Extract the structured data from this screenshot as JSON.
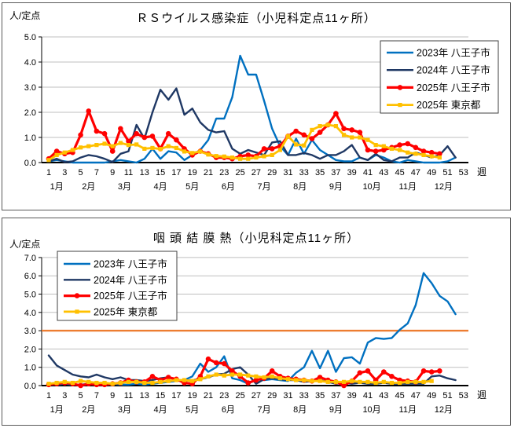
{
  "colors": {
    "background": "#FFFFFF",
    "panel_border": "#595959",
    "gridline": "#BFBFBF",
    "axis": "#000000",
    "blue_2023": "#0070C0",
    "navy_2024": "#1F3864",
    "red_2025_hachioji": "#FF0000",
    "yellow_2025_tokyo": "#FFC000",
    "alert_line_orange": "#ED7D31"
  },
  "chart_data": [
    {
      "type": "line",
      "title": "ＲＳウイルス感染症（小児科定点11ヶ所）",
      "y_axis_label": "人/定点",
      "x_axis_unit": "週",
      "ylim": [
        0,
        5
      ],
      "y_ticks": [
        "0.0",
        "1.0",
        "2.0",
        "3.0",
        "4.0",
        "5.0"
      ],
      "grid": true,
      "legend_position": "top-right",
      "week_ticks": [
        1,
        3,
        5,
        7,
        9,
        11,
        13,
        15,
        17,
        19,
        21,
        23,
        25,
        27,
        29,
        31,
        33,
        35,
        37,
        39,
        41,
        43,
        45,
        47,
        49,
        51,
        53
      ],
      "month_labels": [
        {
          "label": "1月",
          "week": 2
        },
        {
          "label": "2月",
          "week": 6
        },
        {
          "label": "3月",
          "week": 10.5
        },
        {
          "label": "4月",
          "week": 15
        },
        {
          "label": "5月",
          "week": 19
        },
        {
          "label": "6月",
          "week": 23.5
        },
        {
          "label": "7月",
          "week": 28
        },
        {
          "label": "8月",
          "week": 32.5
        },
        {
          "label": "9月",
          "week": 37
        },
        {
          "label": "10月",
          "week": 41.5
        },
        {
          "label": "11月",
          "week": 46
        },
        {
          "label": "12月",
          "week": 50.5
        }
      ],
      "series": [
        {
          "id": "2023-hachioji",
          "name": "2023年  八王子市",
          "color": "#0070C0",
          "marker": "none",
          "width": 2.4,
          "values": [
            0.05,
            0.1,
            0.05,
            0,
            0,
            0,
            0,
            0,
            0.05,
            0.1,
            0.05,
            0,
            0.15,
            0.55,
            0.15,
            0.45,
            0.4,
            0.1,
            0.3,
            0.5,
            0.9,
            1.75,
            1.75,
            2.6,
            4.25,
            3.5,
            3.5,
            2.45,
            1.35,
            0.65,
            0.3,
            0.95,
            0.35,
            0.9,
            0.5,
            0.3,
            0.1,
            0.05,
            0.05,
            0.2,
            0.1,
            0.3,
            0.2,
            0.05,
            0,
            0.1,
            0.05,
            0,
            0,
            0,
            0.05,
            0.2
          ]
        },
        {
          "id": "2024-hachioji",
          "name": "2024年  八王子市",
          "color": "#1F3864",
          "marker": "none",
          "width": 2.4,
          "values": [
            0.05,
            0.15,
            0.02,
            0.05,
            0.2,
            0.3,
            0.25,
            0.15,
            0.02,
            0.35,
            0.45,
            1.5,
            0.95,
            2.0,
            2.9,
            2.5,
            2.95,
            1.9,
            2.15,
            1.6,
            1.3,
            1.2,
            1.25,
            0.55,
            0.35,
            0.5,
            0.4,
            0.3,
            0.8,
            0.85,
            0.3,
            0.3,
            0.38,
            0.3,
            0.15,
            0.3,
            0.3,
            0.45,
            0.7,
            0.2,
            0.1,
            0.35,
            0.1,
            0.05,
            0.2,
            0.2,
            0.4,
            0.3,
            0.2,
            0.3,
            0.65,
            0.2
          ]
        },
        {
          "id": "2025-hachioji",
          "name": "2025年  八王子市",
          "color": "#FF0000",
          "marker": "circle",
          "width": 3.2,
          "values": [
            0.15,
            0.45,
            0.35,
            0.4,
            1.1,
            2.05,
            1.25,
            1.15,
            0.45,
            1.35,
            0.85,
            1.15,
            1.0,
            1.05,
            0.55,
            1.15,
            0.9,
            0.55,
            0.3,
            0.45,
            0.35,
            0.2,
            0.2,
            0.15,
            0.25,
            0.3,
            0.25,
            0.55,
            0.55,
            0.65,
            1.05,
            1.25,
            1.1,
            0.95,
            1.2,
            1.5,
            1.95,
            1.35,
            1.3,
            1.2,
            0.5,
            0.45,
            0.5,
            0.6,
            0.7,
            0.75,
            0.6,
            0.45,
            0.4,
            0.35
          ]
        },
        {
          "id": "2025-tokyo",
          "name": "2025年  東京都",
          "color": "#FFC000",
          "marker": "square",
          "width": 2.8,
          "values": [
            0.1,
            0.3,
            0.4,
            0.5,
            0.6,
            0.65,
            0.7,
            0.75,
            0.65,
            0.78,
            0.7,
            0.72,
            0.55,
            0.58,
            0.54,
            0.65,
            0.58,
            0.44,
            0.38,
            0.44,
            0.32,
            0.26,
            0.24,
            0.2,
            0.15,
            0.15,
            0.2,
            0.25,
            0.3,
            0.5,
            1.05,
            0.72,
            0.68,
            1.3,
            1.45,
            1.5,
            1.45,
            1.1,
            1.0,
            1.0,
            0.9,
            0.7,
            0.65,
            0.55,
            0.5,
            0.4,
            0.35,
            0.3,
            0.25,
            0.2
          ]
        }
      ]
    },
    {
      "type": "line",
      "title": "咽 頭 結 膜 熱（小児科定点11ヶ所）",
      "y_axis_label": "人/定点",
      "x_axis_unit": "週",
      "ylim": [
        0,
        7
      ],
      "y_ticks": [
        "0.0",
        "1.0",
        "2.0",
        "3.0",
        "4.0",
        "5.0",
        "6.0",
        "7.0"
      ],
      "grid": true,
      "legend_position": "top-left",
      "threshold_line": {
        "value": 3.0,
        "color": "#ED7D31"
      },
      "week_ticks": [
        1,
        3,
        5,
        7,
        9,
        11,
        13,
        15,
        17,
        19,
        21,
        23,
        25,
        27,
        29,
        31,
        33,
        35,
        37,
        39,
        41,
        43,
        45,
        47,
        49,
        51,
        53
      ],
      "month_labels": [
        {
          "label": "1月",
          "week": 2
        },
        {
          "label": "2月",
          "week": 6
        },
        {
          "label": "3月",
          "week": 10.5
        },
        {
          "label": "4月",
          "week": 15
        },
        {
          "label": "5月",
          "week": 19
        },
        {
          "label": "6月",
          "week": 23.5
        },
        {
          "label": "7月",
          "week": 28
        },
        {
          "label": "8月",
          "week": 32.5
        },
        {
          "label": "9月",
          "week": 37
        },
        {
          "label": "10月",
          "week": 41.5
        },
        {
          "label": "11月",
          "week": 46
        },
        {
          "label": "12月",
          "week": 50.5
        }
      ],
      "series": [
        {
          "id": "2023-hachioji",
          "name": "2023年  八王子市",
          "color": "#0070C0",
          "marker": "none",
          "width": 2.4,
          "values": [
            0.1,
            0.05,
            0.1,
            0.05,
            0.05,
            0.1,
            0.05,
            0.05,
            0.1,
            0.05,
            0.05,
            0.1,
            0.05,
            0.1,
            0.15,
            0.2,
            0.25,
            0.3,
            0.5,
            1.2,
            0.75,
            1.0,
            1.6,
            0.4,
            0.3,
            0.1,
            0.35,
            0.3,
            0.35,
            0.3,
            0.25,
            0.7,
            1.0,
            1.9,
            0.95,
            1.9,
            0.75,
            1.5,
            1.55,
            1.2,
            2.35,
            2.6,
            2.55,
            2.6,
            3.05,
            3.4,
            4.4,
            6.15,
            5.6,
            4.9,
            4.6,
            3.9
          ]
        },
        {
          "id": "2024-hachioji",
          "name": "2024年  八王子市",
          "color": "#1F3864",
          "marker": "none",
          "width": 2.4,
          "values": [
            1.65,
            1.1,
            0.85,
            0.6,
            0.5,
            0.45,
            0.6,
            0.45,
            0.35,
            0.45,
            0.3,
            0.3,
            0.25,
            0.3,
            0.4,
            0.45,
            0.3,
            0.25,
            0.3,
            0.35,
            0.45,
            0.6,
            0.65,
            0.9,
            1.0,
            0.6,
            0.1,
            0.35,
            0.4,
            0.35,
            0.3,
            0.3,
            0.2,
            0.25,
            0.3,
            0.2,
            0.1,
            0.15,
            0.1,
            0.15,
            0.1,
            0.1,
            0.15,
            0.1,
            0.1,
            0.1,
            0.1,
            0.1,
            0.5,
            0.55,
            0.4,
            0.3
          ]
        },
        {
          "id": "2025-hachioji",
          "name": "2025年  八王子市",
          "color": "#FF0000",
          "marker": "circle",
          "width": 3.2,
          "values": [
            0.05,
            0.1,
            0.15,
            0.1,
            0.0,
            0.1,
            0.05,
            0.05,
            0.1,
            0.15,
            0.3,
            0.2,
            0.2,
            0.5,
            0.3,
            0.45,
            0.35,
            0.15,
            0.1,
            0.5,
            1.45,
            1.25,
            1.2,
            0.8,
            0.5,
            0.15,
            0.3,
            0.4,
            0.8,
            0.5,
            0.4,
            0.35,
            0.3,
            0.25,
            0.45,
            0.3,
            0.2,
            0.0,
            0.25,
            0.7,
            0.8,
            0.3,
            0.75,
            0.5,
            0.3,
            0.25,
            0.2,
            0.8,
            0.75,
            0.8
          ]
        },
        {
          "id": "2025-tokyo",
          "name": "2025年  東京都",
          "color": "#FFC000",
          "marker": "square",
          "width": 2.8,
          "values": [
            0.1,
            0.15,
            0.2,
            0.15,
            0.25,
            0.2,
            0.15,
            0.15,
            0.1,
            0.15,
            0.2,
            0.2,
            0.15,
            0.15,
            0.2,
            0.25,
            0.3,
            0.3,
            0.25,
            0.35,
            0.5,
            0.6,
            0.55,
            0.6,
            0.6,
            0.55,
            0.5,
            0.45,
            0.5,
            0.4,
            0.35,
            0.3,
            0.3,
            0.25,
            0.25,
            0.2,
            0.2,
            0.2,
            0.25,
            0.2,
            0.2,
            0.15,
            0.2,
            0.15,
            0.15,
            0.2,
            0.2,
            0.2,
            0.25
          ]
        }
      ]
    }
  ]
}
